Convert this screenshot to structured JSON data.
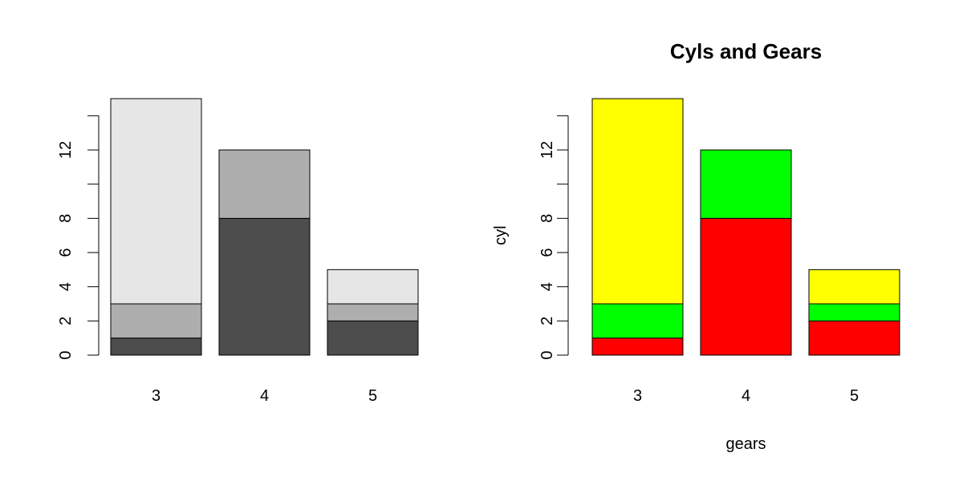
{
  "chart_data": [
    {
      "type": "bar",
      "stacked": true,
      "title": "",
      "xlabel": "",
      "ylabel": "",
      "categories": [
        "3",
        "4",
        "5"
      ],
      "yticks": [
        "0",
        "2",
        "4",
        "6",
        "8",
        "12"
      ],
      "ytick_values": [
        0,
        2,
        4,
        6,
        8,
        12
      ],
      "yminor_ticks": [
        10,
        14
      ],
      "ylim": [
        0,
        15
      ],
      "grid": false,
      "series": [
        {
          "values": [
            1,
            8,
            2
          ],
          "color": "#4d4d4d"
        },
        {
          "values": [
            2,
            4,
            1
          ],
          "color": "#aeaeae"
        },
        {
          "values": [
            12,
            0,
            2
          ],
          "color": "#e6e6e6"
        }
      ]
    },
    {
      "type": "bar",
      "stacked": true,
      "title": "Cyls and Gears",
      "xlabel": "gears",
      "ylabel": "cyl",
      "categories": [
        "3",
        "4",
        "5"
      ],
      "yticks": [
        "0",
        "2",
        "4",
        "6",
        "8",
        "12"
      ],
      "ytick_values": [
        0,
        2,
        4,
        6,
        8,
        12
      ],
      "yminor_ticks": [
        10,
        14
      ],
      "ylim": [
        0,
        15
      ],
      "grid": false,
      "series": [
        {
          "values": [
            1,
            8,
            2
          ],
          "color": "#ff0000"
        },
        {
          "values": [
            2,
            4,
            1
          ],
          "color": "#00ff00"
        },
        {
          "values": [
            12,
            0,
            2
          ],
          "color": "#ffff00"
        }
      ]
    }
  ]
}
